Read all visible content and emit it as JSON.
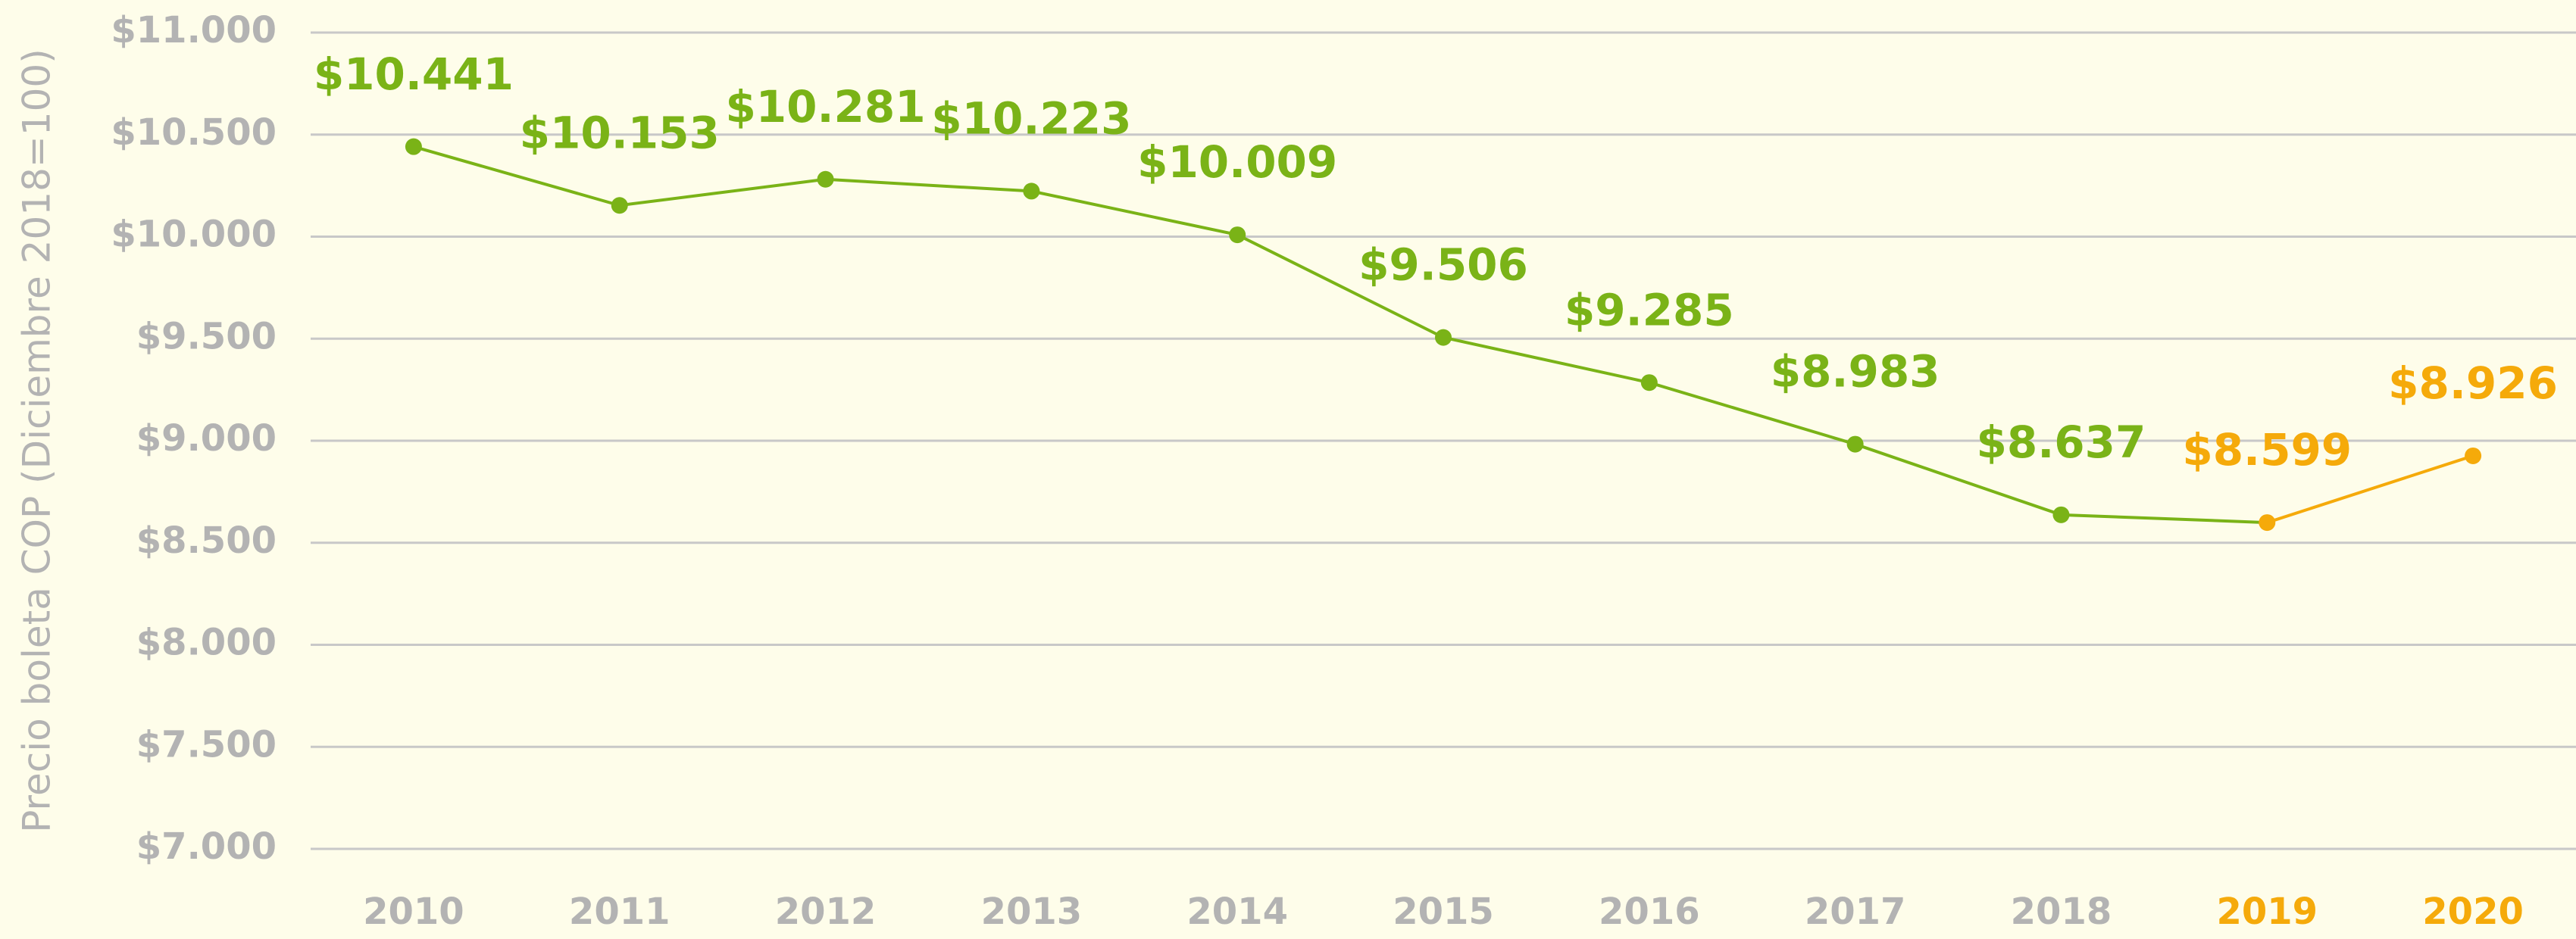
{
  "chart_data": {
    "type": "line",
    "y_label": "Precio boleta COP (Diciembre 2018=100)",
    "categories": [
      "2010",
      "2011",
      "2012",
      "2013",
      "2014",
      "2015",
      "2016",
      "2017",
      "2018",
      "2019",
      "2020"
    ],
    "category_label_colors": [
      "#b3b3b3",
      "#b3b3b3",
      "#b3b3b3",
      "#b3b3b3",
      "#b3b3b3",
      "#b3b3b3",
      "#b3b3b3",
      "#b3b3b3",
      "#b3b3b3",
      "#f5aa0a",
      "#f5aa0a"
    ],
    "values": [
      10441,
      10153,
      10281,
      10223,
      10009,
      9506,
      9285,
      8983,
      8637,
      8599,
      8926
    ],
    "value_labels": [
      "$10.441",
      "$10.153",
      "$10.281",
      "$10.223",
      "$10.009",
      "$9.506",
      "$9.285",
      "$8.983",
      "$8.637",
      "$8.599",
      "$8.926"
    ],
    "point_colors": [
      "#7ab317",
      "#7ab317",
      "#7ab317",
      "#7ab317",
      "#7ab317",
      "#7ab317",
      "#7ab317",
      "#7ab317",
      "#7ab317",
      "#f5aa0a",
      "#f5aa0a"
    ],
    "ylim": [
      7000,
      11000
    ],
    "yticks": [
      {
        "value": 7000,
        "label": "$7.000"
      },
      {
        "value": 7500,
        "label": "$7.500"
      },
      {
        "value": 8000,
        "label": "$8.000"
      },
      {
        "value": 8500,
        "label": "$8.500"
      },
      {
        "value": 9000,
        "label": "$9.000"
      },
      {
        "value": 9500,
        "label": "$9.500"
      },
      {
        "value": 10000,
        "label": "$10.000"
      },
      {
        "value": 10500,
        "label": "$10.500"
      },
      {
        "value": 11000,
        "label": "$11.000"
      }
    ],
    "grid": true
  }
}
